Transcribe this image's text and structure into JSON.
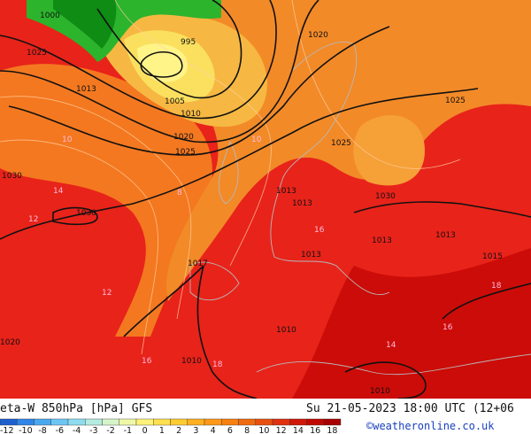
{
  "header": {
    "title": "eta-W 850hPa [hPa] GFS",
    "valid": "Su 21-05-2023 18:00 UTC (12+06",
    "credit": "©weatheronline.co.uk"
  },
  "isobars": [
    "1000",
    "995",
    "1020",
    "1013",
    "1005",
    "1010",
    "1020",
    "1025",
    "1030",
    "1030",
    "1025",
    "1025",
    "1030",
    "1013",
    "1017",
    "1013",
    "1010",
    "1015",
    "1013",
    "1010",
    "1010",
    "1025",
    "1020",
    "1013",
    "1013"
  ],
  "theta_labels": [
    "10",
    "14",
    "12",
    "16",
    "16",
    "18",
    "12",
    "14",
    "16",
    "18",
    "10",
    "8"
  ],
  "colorbar": {
    "labels": [
      -12,
      -10,
      -8,
      -6,
      -4,
      -3,
      -2,
      -1,
      0,
      1,
      2,
      3,
      4,
      6,
      8,
      10,
      12,
      14,
      16,
      18
    ],
    "colors": [
      "#1e5fd0",
      "#2f86e8",
      "#4aa8f0",
      "#6cc6f4",
      "#8edcf0",
      "#b4ece0",
      "#d6f4c8",
      "#eef8a8",
      "#fff278",
      "#ffe050",
      "#ffcc30",
      "#ffb020",
      "#ff9818",
      "#f88010",
      "#f06a10",
      "#e85010",
      "#e03010",
      "#d01808",
      "#c00800",
      "#a80000"
    ]
  }
}
